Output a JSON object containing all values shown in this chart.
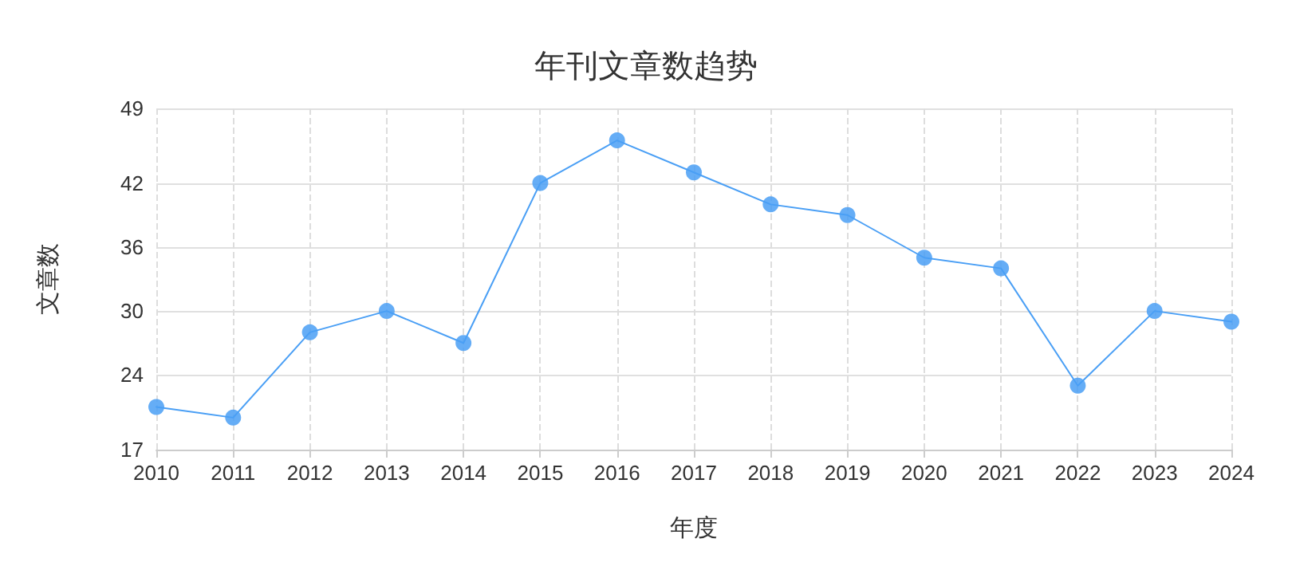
{
  "chart_data": {
    "type": "line",
    "title": "年刊文章数趋势",
    "xlabel": "年度",
    "ylabel": "文章数",
    "categories": [
      "2010",
      "2011",
      "2012",
      "2013",
      "2014",
      "2015",
      "2016",
      "2017",
      "2018",
      "2019",
      "2020",
      "2021",
      "2022",
      "2023",
      "2024"
    ],
    "series": [
      {
        "color": "#4a9ff5",
        "values": [
          21,
          20,
          28,
          30,
          27,
          42,
          46,
          43,
          40,
          39,
          35,
          34,
          23,
          30,
          29
        ]
      }
    ],
    "ylim": [
      17,
      49
    ],
    "yticks": [
      17,
      24,
      30,
      36,
      42,
      49
    ],
    "grid": true,
    "marker": "circle"
  }
}
